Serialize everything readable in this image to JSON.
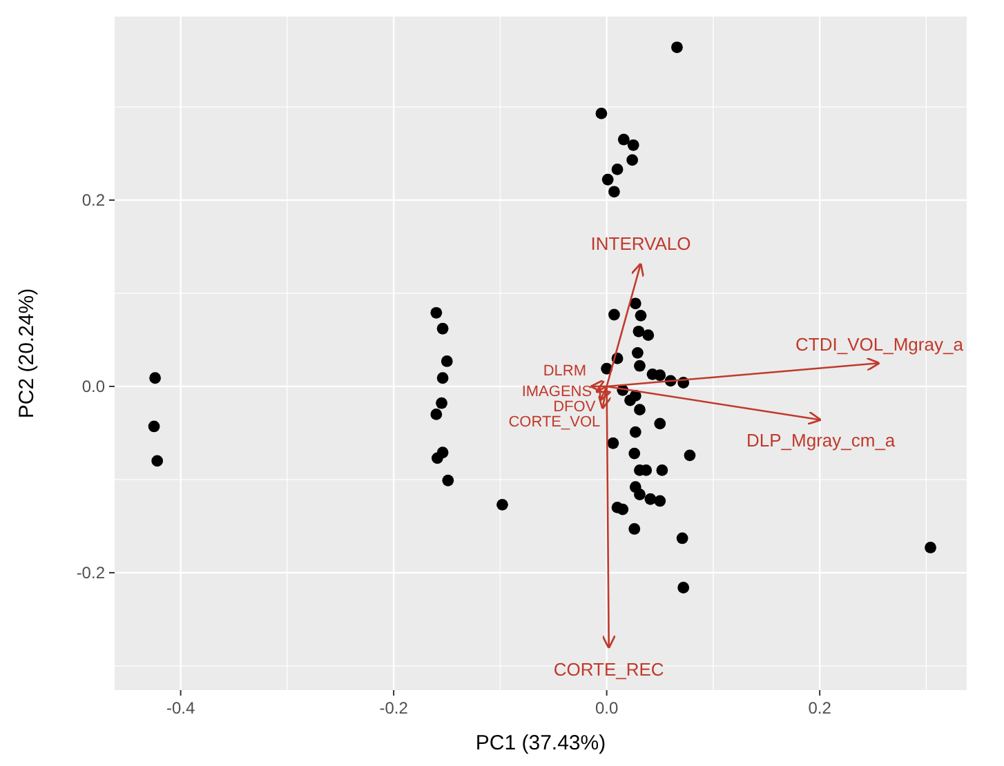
{
  "chart_data": {
    "type": "scatter",
    "xlabel": "PC1 (37.43%)",
    "ylabel": "PC2 (20.24%)",
    "xlim": [
      -0.462,
      0.338
    ],
    "ylim": [
      -0.326,
      0.397
    ],
    "xticks": [
      -0.4,
      -0.2,
      {
        "value": 0,
        "label": "0.0"
      },
      0.2
    ],
    "yticks": [
      -0.2,
      {
        "value": 0,
        "label": "0.0"
      },
      0.2
    ],
    "grid": true,
    "series": [
      {
        "color": "#000000",
        "marker": "circle",
        "x": [
          -0.424,
          -0.425,
          -0.422,
          -0.16,
          -0.154,
          -0.15,
          -0.154,
          -0.155,
          -0.16,
          -0.154,
          -0.159,
          -0.149,
          -0.098,
          0.066,
          -0.005,
          0.025,
          0.016,
          0.024,
          0.01,
          0.001,
          0.007,
          0.304,
          0.007,
          0.027,
          0.032,
          0.03,
          0.039,
          0.029,
          0.01,
          0.0,
          0.031,
          0.043,
          0.05,
          0.072,
          0.06,
          0.05,
          0.027,
          0.006,
          0.078,
          0.026,
          0.031,
          0.037,
          0.052,
          0.027,
          0.031,
          0.041,
          0.05,
          0.01,
          0.015,
          0.026,
          0.071,
          0.072,
          0.027,
          0.015,
          0.022,
          0.031
        ],
        "values": [
          0.009,
          -0.043,
          -0.08,
          0.079,
          0.062,
          0.027,
          0.009,
          -0.018,
          -0.03,
          -0.071,
          -0.077,
          -0.101,
          -0.127,
          0.364,
          0.293,
          0.259,
          0.265,
          0.243,
          0.233,
          0.222,
          0.209,
          -0.173,
          0.077,
          0.089,
          0.076,
          0.059,
          0.055,
          0.036,
          0.03,
          0.019,
          0.022,
          0.013,
          0.012,
          0.004,
          0.006,
          -0.04,
          -0.049,
          -0.061,
          -0.074,
          -0.072,
          -0.09,
          -0.09,
          -0.09,
          -0.108,
          -0.116,
          -0.121,
          -0.123,
          -0.13,
          -0.132,
          -0.153,
          -0.163,
          -0.216,
          -0.01,
          -0.004,
          -0.015,
          -0.025
        ]
      },
      {
        "type": "line",
        "name": "INTERVALO",
        "color": "#c0392b",
        "x": [
          0,
          0.032
        ],
        "values": [
          0,
          0.132
        ]
      },
      {
        "type": "line",
        "name": "CTDI_VOL_Mgray_a",
        "color": "#c0392b",
        "x": [
          0,
          0.256
        ],
        "values": [
          0,
          0.025
        ]
      },
      {
        "type": "line",
        "name": "DLP_Mgray_cm_a",
        "color": "#c0392b",
        "x": [
          0,
          0.201
        ],
        "values": [
          0,
          -0.036
        ]
      },
      {
        "type": "line",
        "name": "DLRM",
        "color": "#c0392b",
        "x": [
          0,
          -0.015
        ],
        "values": [
          0,
          0.0
        ]
      },
      {
        "type": "line",
        "name": "IMAGENS",
        "color": "#c0392b",
        "x": [
          0,
          -0.01
        ],
        "values": [
          0,
          -0.006
        ]
      },
      {
        "type": "line",
        "name": "DFOV",
        "color": "#c0392b",
        "x": [
          0,
          -0.006
        ],
        "values": [
          0,
          -0.015
        ]
      },
      {
        "type": "line",
        "name": "CORTE_VOL",
        "color": "#c0392b",
        "x": [
          0,
          -0.004
        ],
        "values": [
          0,
          -0.024
        ]
      },
      {
        "type": "line",
        "name": "CORTE_REC",
        "color": "#c0392b",
        "x": [
          0,
          0.002
        ],
        "values": [
          0,
          -0.281
        ]
      }
    ]
  }
}
